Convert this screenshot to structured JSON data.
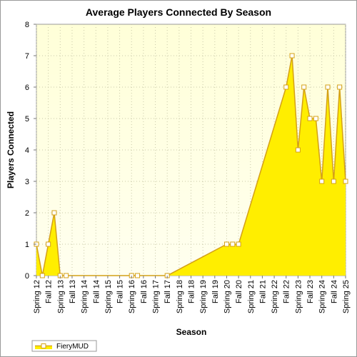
{
  "chart_data": {
    "type": "area",
    "title": "Average Players Connected By Season",
    "xlabel": "Season",
    "ylabel": "Players Connected",
    "ylim": [
      0,
      8
    ],
    "yticks": [
      "0",
      "1",
      "2",
      "3",
      "4",
      "5",
      "6",
      "7",
      "8"
    ],
    "grid": true,
    "legend_position": "bottom-left",
    "tick_labels": [
      "Spring 12",
      "Fall 12",
      "Spring 13",
      "Fall 13",
      "Spring 14",
      "Fall 14",
      "Spring 15",
      "Fall 15",
      "Spring 16",
      "Fall 16",
      "Spring 17",
      "Fall 17",
      "Spring 18",
      "Fall 18",
      "Spring 19",
      "Fall 19",
      "Spring 20",
      "Fall 20",
      "Spring 21",
      "Fall 21",
      "Spring 22",
      "Fall 22",
      "Spring 23",
      "Fall 23",
      "Spring 24",
      "Fall 24",
      "Spring 25"
    ],
    "series": [
      {
        "name": "FieryMUD",
        "color": "#ffee00",
        "line_color": "#d4a017",
        "points": [
          {
            "x": "Spring 12",
            "y": 1
          },
          {
            "x": "Summer 12",
            "y": 0
          },
          {
            "x": "Fall 12",
            "y": 1
          },
          {
            "x": "Winter 12",
            "y": 2
          },
          {
            "x": "Spring 13",
            "y": 0
          },
          {
            "x": "Summer 13",
            "y": 0
          },
          {
            "x": "Spring 16",
            "y": 0
          },
          {
            "x": "Summer 16",
            "y": 0
          },
          {
            "x": "Fall 17",
            "y": 0
          },
          {
            "x": "Spring 20",
            "y": 1
          },
          {
            "x": "Summer 20",
            "y": 1
          },
          {
            "x": "Fall 20",
            "y": 1
          },
          {
            "x": "Fall 22",
            "y": 6
          },
          {
            "x": "Winter 22",
            "y": 7
          },
          {
            "x": "Spring 23",
            "y": 4
          },
          {
            "x": "Summer 23",
            "y": 6
          },
          {
            "x": "Fall 23",
            "y": 5
          },
          {
            "x": "Winter 23",
            "y": 5
          },
          {
            "x": "Spring 24",
            "y": 3
          },
          {
            "x": "Summer 24",
            "y": 6
          },
          {
            "x": "Fall 24",
            "y": 3
          },
          {
            "x": "Winter 24",
            "y": 6
          },
          {
            "x": "Spring 25",
            "y": 3
          }
        ]
      }
    ]
  }
}
